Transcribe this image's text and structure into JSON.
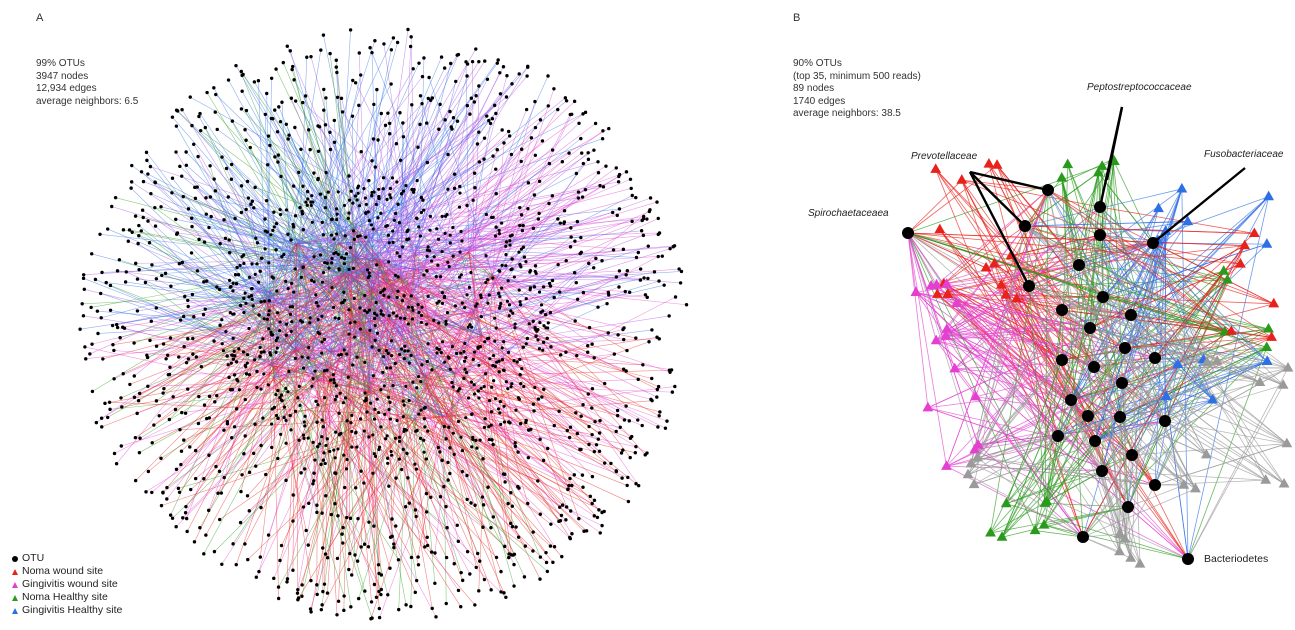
{
  "panel_a": {
    "letter": "A",
    "stats": [
      "99% OTUs",
      "3947 nodes",
      "12,934 edges",
      "average neighbors: 6.5"
    ]
  },
  "panel_b": {
    "letter": "B",
    "stats": [
      "90% OTUs",
      "(top 35, minimum 500 reads)",
      "89 nodes",
      "1740 edges",
      "average neighbors: 38.5"
    ],
    "annotations": {
      "prevotellaceae": "Prevotellaceae",
      "peptostreptococcaceae": "Peptostreptococcaceae",
      "fusobacteriaceae": "Fusobacteriaceae",
      "spirochaetaceaea": "Spirochaetaceaea",
      "bacteriodetes": "Bacteriodetes"
    }
  },
  "legend": {
    "items": [
      {
        "label": "OTU",
        "marker": "dot",
        "color": "#000000"
      },
      {
        "label": "Noma wound site",
        "marker": "triangle",
        "color": "#e8211b"
      },
      {
        "label": "Gingivitis wound site",
        "marker": "triangle",
        "color": "#e43fd0"
      },
      {
        "label": "Noma Healthy site",
        "marker": "triangle",
        "color": "#2a9a1c"
      },
      {
        "label": "Gingivitis Healthy site",
        "marker": "triangle",
        "color": "#2f6fe6"
      }
    ]
  },
  "colors": {
    "noma_wound": "#e8211b",
    "gingivitis_wound": "#e43fd0",
    "noma_healthy": "#2a9a1c",
    "gingivitis_healthy": "#2f6fe6",
    "other": "#9a9a9a",
    "purple_mix": "#a64fe0",
    "otu_node": "#000000"
  }
}
